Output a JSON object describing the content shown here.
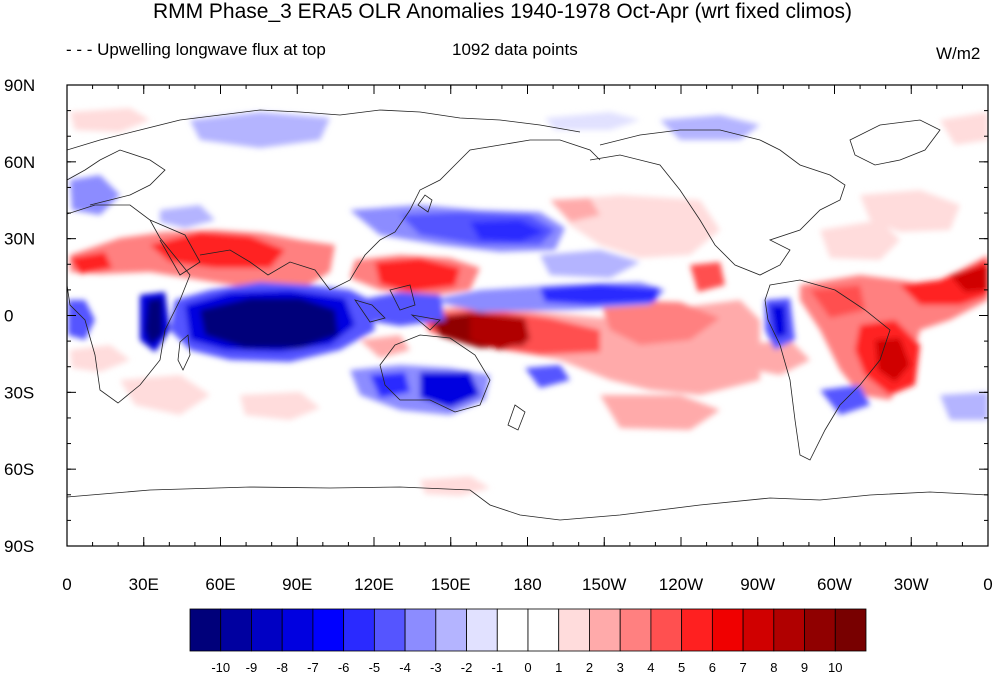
{
  "title": "RMM Phase_3 ERA5 OLR Anomalies 1940-1978 Oct-Apr (wrt fixed climos)",
  "subtitle_left": "- - - Upwelling longwave flux at top",
  "subtitle_center": "1092 data points",
  "units": "W/m2",
  "lat_labels": [
    "90N",
    "60N",
    "30N",
    "0",
    "30S",
    "60S",
    "90S"
  ],
  "lon_labels": [
    "0",
    "30E",
    "60E",
    "90E",
    "120E",
    "150E",
    "180",
    "150W",
    "120W",
    "90W",
    "60W",
    "30W",
    "0"
  ],
  "colorbar": {
    "labels": [
      "-10",
      "-9",
      "-8",
      "-7",
      "-6",
      "-5",
      "-4",
      "-3",
      "-2",
      "-1",
      "0",
      "1",
      "2",
      "3",
      "4",
      "5",
      "6",
      "7",
      "8",
      "9",
      "10"
    ],
    "colors": [
      "#00007a",
      "#0000a0",
      "#0000c4",
      "#0000e0",
      "#0000ff",
      "#2a2aff",
      "#5555ff",
      "#8c8cff",
      "#b4b4ff",
      "#e1e1ff",
      "#ffffff",
      "#ffffff",
      "#ffdcdc",
      "#ffaaaa",
      "#ff8080",
      "#ff5050",
      "#ff2020",
      "#f00000",
      "#d00000",
      "#b00000",
      "#900000",
      "#780000"
    ]
  },
  "map_extent": {
    "lon_range": [
      0,
      360
    ],
    "lat_range": [
      -90,
      90
    ],
    "projection": "cylindrical equidistant",
    "coastlines": true,
    "background": "land white"
  }
}
